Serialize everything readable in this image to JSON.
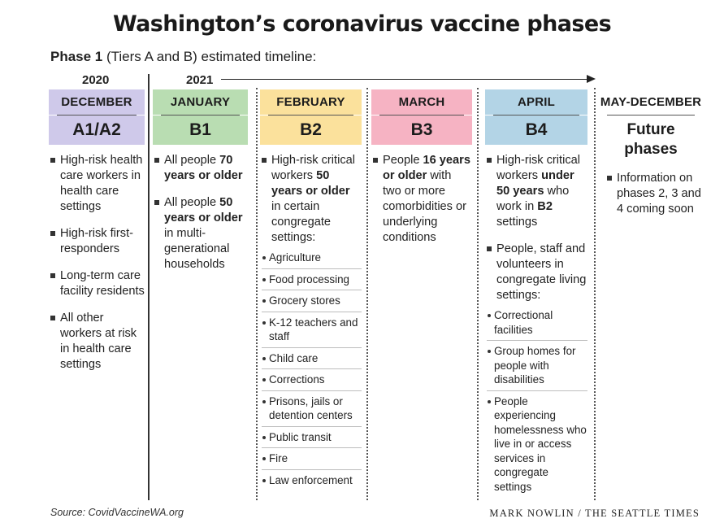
{
  "title": "Washington’s coronavirus vaccine phases",
  "subtitle": {
    "bold": "Phase 1",
    "rest": " (Tiers A and B) estimated timeline:"
  },
  "years": [
    "2020",
    "2021"
  ],
  "colors": {
    "december": "#cfc9ea",
    "january": "#b9ddb2",
    "february": "#fbe19c",
    "march": "#f6b3c3",
    "april": "#b3d4e6"
  },
  "columns": [
    {
      "month": "DECEMBER",
      "phase": "A1/A2",
      "bullets": [
        {
          "text": "High-risk health care workers in health care settings"
        },
        {
          "text": "High-risk first-responders"
        },
        {
          "text": "Long-term care facility residents"
        },
        {
          "text": "All other workers at risk in health care settings"
        }
      ]
    },
    {
      "month": "JANUARY",
      "phase": "B1",
      "bullets": [
        {
          "pre": "All people ",
          "bold": "70 years or older",
          "post": ""
        },
        {
          "pre": "All people ",
          "bold": "50 years or older",
          "post": " in multi-generational households"
        }
      ]
    },
    {
      "month": "FEBRUARY",
      "phase": "B2",
      "bullet": {
        "pre": "High-risk critical workers ",
        "bold": "50 years or older",
        "post": " in certain congregate settings:"
      },
      "subs": [
        "Agriculture",
        "Food processing",
        "Grocery stores",
        "K-12 teachers and staff",
        "Child care",
        "Corrections",
        "Prisons, jails or detention centers",
        "Public transit",
        "Fire",
        "Law enforcement"
      ]
    },
    {
      "month": "MARCH",
      "phase": "B3",
      "bullet": {
        "pre": "People ",
        "bold": "16 years or older",
        "post": " with two or more comorbidities or underlying conditions"
      }
    },
    {
      "month": "APRIL",
      "phase": "B4",
      "bullet1": {
        "pre": "High-risk critical workers ",
        "bold": "under 50 years",
        "mid": " who work in ",
        "bold2": "B2",
        "post": " settings"
      },
      "bullet2": {
        "text": "People, staff and volunteers in congregate living settings:"
      },
      "subs": [
        "Correctional facilities",
        "Group homes for people with disabilities",
        "People experiencing homelessness who live in or access services in congregate settings"
      ]
    },
    {
      "month": "MAY-DECEMBER",
      "phase": "Future phases",
      "bullet": {
        "text": "Information on phases 2, 3 and 4 coming soon"
      }
    }
  ],
  "source": "Source: CovidVaccineWA.org",
  "credit": "MARK NOWLIN / THE SEATTLE TIMES"
}
